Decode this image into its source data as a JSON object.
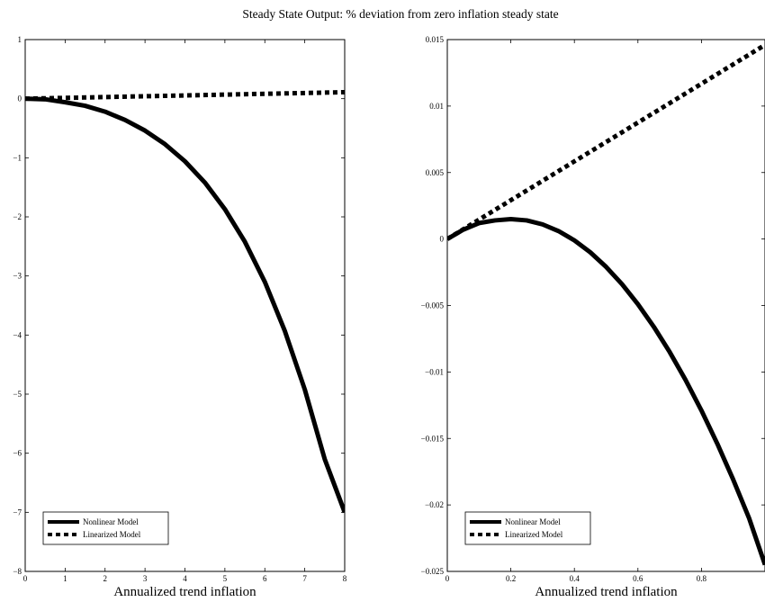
{
  "figure": {
    "suptitle": "Steady State Output: % deviation from zero inflation steady state"
  },
  "chart_data": [
    {
      "type": "line",
      "title": "",
      "xlabel": "Annualized trend inflation",
      "ylabel": "",
      "xlim": [
        0,
        8
      ],
      "ylim": [
        -8,
        1
      ],
      "xticks": [
        0,
        1,
        2,
        3,
        4,
        5,
        6,
        7,
        8
      ],
      "xtick_labels": [
        "0",
        "1",
        "2",
        "3",
        "4",
        "5",
        "6",
        "7",
        "8"
      ],
      "yticks": [
        1,
        0,
        -1,
        -2,
        -3,
        -4,
        -5,
        -6,
        -7,
        -8
      ],
      "ytick_labels": [
        "1",
        "0",
        "−1",
        "−2",
        "−3",
        "−4",
        "−5",
        "−6",
        "−7",
        "−8"
      ],
      "grid": false,
      "legend_position": "bottom-left",
      "series": [
        {
          "name": "Nonlinear Model",
          "style": "solid",
          "color": "#000000",
          "x": [
            0,
            0.5,
            1,
            1.5,
            2,
            2.5,
            3,
            3.5,
            4,
            4.5,
            5,
            5.5,
            6,
            6.5,
            7,
            7.5,
            8
          ],
          "y": [
            0,
            -0.01,
            -0.06,
            -0.12,
            -0.22,
            -0.36,
            -0.54,
            -0.77,
            -1.06,
            -1.42,
            -1.87,
            -2.42,
            -3.1,
            -3.93,
            -4.92,
            -6.1,
            -7.0
          ]
        },
        {
          "name": "Linearized Model",
          "style": "dotted",
          "color": "#000000",
          "x": [
            0,
            8
          ],
          "y": [
            0,
            0.11
          ]
        }
      ]
    },
    {
      "type": "line",
      "title": "",
      "xlabel": "Annualized trend inflation",
      "ylabel": "",
      "xlim": [
        0,
        1
      ],
      "ylim": [
        -0.025,
        0.015
      ],
      "xticks": [
        0,
        0.2,
        0.4,
        0.6,
        0.8
      ],
      "xtick_labels": [
        "0",
        "0.2",
        "0.4",
        "0.6",
        "0.8"
      ],
      "yticks": [
        0.015,
        0.01,
        0.005,
        0,
        -0.005,
        -0.01,
        -0.015,
        -0.02,
        -0.025
      ],
      "ytick_labels": [
        "0.015",
        "0.01",
        "0.005",
        "0",
        "−0.005",
        "−0.01",
        "−0.015",
        "−0.02",
        "−0.025"
      ],
      "grid": false,
      "legend_position": "bottom-left",
      "series": [
        {
          "name": "Nonlinear Model",
          "style": "solid",
          "color": "#000000",
          "x": [
            0,
            0.05,
            0.1,
            0.15,
            0.2,
            0.25,
            0.3,
            0.35,
            0.4,
            0.45,
            0.5,
            0.55,
            0.6,
            0.65,
            0.7,
            0.75,
            0.8,
            0.85,
            0.9,
            0.95,
            1.0
          ],
          "y": [
            0,
            0.0007,
            0.0012,
            0.0014,
            0.0015,
            0.0014,
            0.0011,
            0.0006,
            -0.0001,
            -0.001,
            -0.0021,
            -0.0034,
            -0.0049,
            -0.0066,
            -0.0085,
            -0.0106,
            -0.0129,
            -0.0154,
            -0.0181,
            -0.021,
            -0.0245
          ]
        },
        {
          "name": "Linearized Model",
          "style": "dotted",
          "color": "#000000",
          "x": [
            0,
            1.0
          ],
          "y": [
            0,
            0.0146
          ]
        }
      ]
    }
  ]
}
